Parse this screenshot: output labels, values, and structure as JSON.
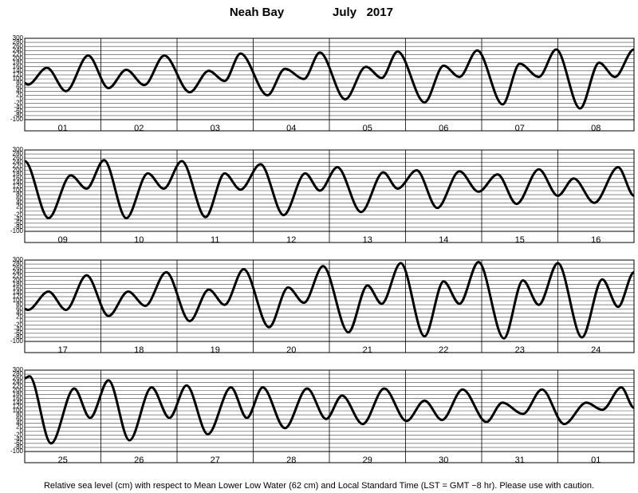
{
  "title": "Neah Bay",
  "date": "July   2017",
  "caption": "Relative sea level (cm) with respect to Mean Lower Low Water (62 cm) and Local Standard Time (LST = GMT −8 hr). Please use with caution.",
  "chart_data": [
    {
      "type": "line",
      "categories": [
        "01",
        "02",
        "03",
        "04",
        "05",
        "06",
        "07",
        "08"
      ],
      "xlim": [
        0,
        192
      ],
      "ylim": [
        -100,
        300
      ],
      "yticks": [
        -100,
        -80,
        -60,
        -40,
        -20,
        0,
        20,
        40,
        60,
        80,
        100,
        120,
        140,
        160,
        180,
        200,
        220,
        240,
        260,
        280,
        300
      ],
      "grid": true,
      "x": [
        0,
        1,
        7,
        13,
        20,
        26.4,
        32,
        37.7,
        44,
        52,
        58,
        63,
        68,
        76.5,
        82,
        88,
        93,
        101,
        107.5,
        112.5,
        117.5,
        126,
        132,
        137,
        142.6,
        150.6,
        156,
        162,
        167.5,
        175,
        181,
        186,
        192
      ],
      "series": [
        {
          "color": "#000000",
          "values": [
            80,
            72,
            155,
            40,
            215,
            55,
            145,
            70,
            215,
            35,
            140,
            90,
            225,
            20,
            150,
            100,
            230,
            0,
            160,
            105,
            235,
            -15,
            165,
            110,
            240,
            -25,
            175,
            110,
            245,
            -45,
            180,
            110,
            245
          ]
        }
      ]
    },
    {
      "type": "line",
      "categories": [
        "09",
        "10",
        "11",
        "12",
        "13",
        "14",
        "15",
        "16"
      ],
      "xlim": [
        0,
        192
      ],
      "ylim": [
        -100,
        300
      ],
      "yticks": [
        -100,
        -80,
        -60,
        -40,
        -20,
        0,
        20,
        40,
        60,
        80,
        100,
        120,
        140,
        160,
        180,
        200,
        220,
        240,
        260,
        280,
        300
      ],
      "grid": true,
      "x": [
        0,
        7.5,
        14.5,
        19.5,
        25,
        32,
        38.8,
        43.8,
        49.5,
        57,
        63,
        68,
        74.3,
        81.6,
        88.4,
        93,
        98.5,
        106,
        113,
        117.5,
        123.5,
        130,
        137,
        143,
        149,
        155,
        162,
        168,
        173,
        179.5,
        187,
        192
      ],
      "series": [
        {
          "color": "#000000",
          "values": [
            245,
            -35,
            175,
            110,
            250,
            -35,
            185,
            110,
            245,
            -30,
            185,
            105,
            230,
            -20,
            185,
            100,
            215,
            -5,
            190,
            110,
            200,
            15,
            195,
            95,
            180,
            35,
            205,
            75,
            160,
            40,
            215,
            75
          ]
        }
      ]
    },
    {
      "type": "line",
      "categories": [
        "17",
        "18",
        "19",
        "20",
        "21",
        "22",
        "23",
        "24"
      ],
      "xlim": [
        0,
        192
      ],
      "ylim": [
        -100,
        300
      ],
      "yticks": [
        -100,
        -80,
        -60,
        -40,
        -20,
        0,
        20,
        40,
        60,
        80,
        100,
        120,
        140,
        160,
        180,
        200,
        220,
        240,
        260,
        280,
        300
      ],
      "grid": true,
      "x": [
        0,
        1,
        7.5,
        13,
        19.5,
        26.4,
        32.6,
        38,
        44.6,
        52,
        58,
        63,
        69,
        77,
        83,
        88,
        94,
        102,
        108,
        112.5,
        118.5,
        126,
        132,
        137,
        143,
        151,
        157,
        162,
        168,
        175.6,
        182,
        187,
        192
      ],
      "series": [
        {
          "color": "#000000",
          "values": [
            60,
            55,
            145,
            55,
            225,
            25,
            145,
            75,
            240,
            0,
            155,
            80,
            255,
            -30,
            165,
            90,
            270,
            -55,
            175,
            85,
            285,
            -75,
            195,
            85,
            290,
            -85,
            200,
            80,
            285,
            -80,
            205,
            70,
            240
          ]
        }
      ]
    },
    {
      "type": "line",
      "categories": [
        "25",
        "26",
        "27",
        "28",
        "29",
        "30",
        "31",
        "01"
      ],
      "xlim": [
        0,
        192
      ],
      "ylim": [
        -100,
        300
      ],
      "yticks": [
        -100,
        -80,
        -60,
        -40,
        -20,
        0,
        20,
        40,
        60,
        80,
        100,
        120,
        140,
        160,
        180,
        200,
        220,
        240,
        260,
        280,
        300
      ],
      "grid": true,
      "x": [
        0,
        1.5,
        8.3,
        15.6,
        20.6,
        26.4,
        33,
        40,
        45.6,
        51,
        57.7,
        65,
        70,
        75,
        82,
        89,
        95,
        100,
        106.5,
        113.3,
        120.3,
        126,
        131.5,
        138,
        145.5,
        150.5,
        157,
        163,
        170,
        177,
        182,
        188,
        192
      ],
      "series": [
        {
          "color": "#000000",
          "values": [
            260,
            270,
            -60,
            210,
            65,
            250,
            -45,
            215,
            65,
            225,
            -15,
            215,
            65,
            215,
            15,
            210,
            60,
            175,
            35,
            210,
            50,
            150,
            55,
            205,
            45,
            140,
            85,
            205,
            35,
            140,
            105,
            215,
            115
          ]
        }
      ]
    }
  ]
}
